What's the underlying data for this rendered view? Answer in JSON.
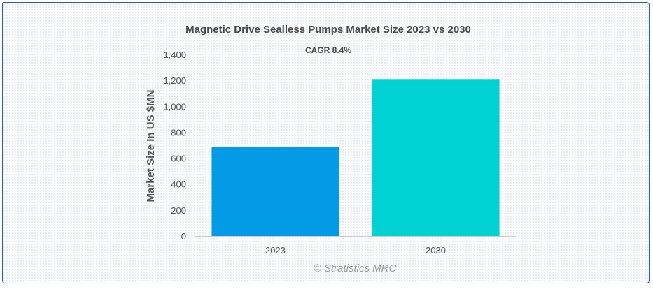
{
  "chart_data": {
    "type": "bar",
    "title": "Magnetic Drive Sealless Pumps Market Size 2023 vs 2030",
    "subtitle": "CAGR 8.4%",
    "categories": [
      "2023",
      "2030"
    ],
    "values": [
      685,
      1210
    ],
    "ylabel": "Market Size In US $MN",
    "xlabel": "",
    "ylim": [
      0,
      1400
    ],
    "yticks": [
      0,
      200,
      400,
      600,
      800,
      1000,
      1200,
      1400
    ],
    "ytick_labels": [
      "0",
      "200",
      "400",
      "600",
      "800",
      "1,000",
      "1,200",
      "1,400"
    ],
    "bar_colors": [
      "#039be5",
      "#00d2d3"
    ],
    "grid": false
  },
  "watermark": "© Stratistics MRC",
  "colors": {
    "frame_border": "#2f5f9a",
    "axis": "#cccccc",
    "text": "#555555"
  }
}
